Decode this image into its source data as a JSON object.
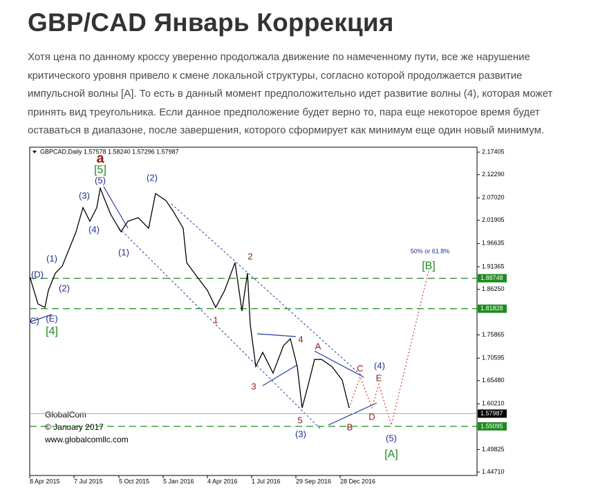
{
  "heading": "GBP/CAD Январь Коррекция",
  "paragraph": [
    "Хотя цена по данному кроссу уверенно продолжала движение по намеченному пути, все же нарушение",
    "критического уровня привело к смене локальной структуры, согласно которой продолжается развитие",
    "импульсной волны [А]. То есть в данный момент предположительно идет развитие волны (4), которая может",
    "принять вид треугольника. Если данное предположение будет верно то, пара еще некоторое время будет",
    "оставаться в диапазоне, после завершения, которого сформирует как минимум еще один новый минимум."
  ],
  "chart_data": {
    "type": "line",
    "header": "GBPCAD,Daily  1.57578 1.58240 1.57296 1.57987",
    "watermark": [
      "GlobalCom",
      "© January 2017",
      "www.globalcomllc.com"
    ],
    "x": [
      0,
      12,
      22,
      27,
      37,
      47,
      57,
      67,
      77,
      87,
      97,
      102,
      107,
      117,
      132,
      142,
      157,
      172,
      182,
      197,
      207,
      222,
      227,
      242,
      257,
      269,
      282,
      297,
      307,
      315,
      319,
      327,
      337,
      352,
      367,
      377,
      387,
      394,
      402,
      412,
      422,
      437,
      452,
      462
    ],
    "series": [
      {
        "name": "GBPCAD",
        "color": "#000000",
        "values": [
          1.8915,
          1.829,
          1.821,
          1.86,
          1.899,
          1.915,
          1.954,
          1.993,
          2.048,
          2.017,
          2.048,
          2.092,
          2.072,
          2.033,
          1.993,
          2.017,
          2.025,
          2.001,
          2.08,
          2.064,
          2.041,
          2.001,
          1.923,
          1.891,
          1.86,
          1.821,
          1.86,
          1.923,
          1.813,
          1.899,
          1.782,
          1.687,
          1.719,
          1.672,
          1.734,
          1.75,
          1.687,
          1.593,
          1.64,
          1.703,
          1.703,
          1.687,
          1.656,
          1.593
        ]
      }
    ],
    "xlim": [
      0,
      647
    ],
    "xticks": [
      {
        "value": 0,
        "label": "8 Apr 2015"
      },
      {
        "value": 64,
        "label": "7 Jul 2015"
      },
      {
        "value": 129,
        "label": "5 Oct 2015"
      },
      {
        "value": 193,
        "label": "5 Jan 2016"
      },
      {
        "value": 257,
        "label": "4 Apr 2016"
      },
      {
        "value": 321,
        "label": "1 Jul 2016"
      },
      {
        "value": 385,
        "label": "29 Sep 2016"
      },
      {
        "value": 449,
        "label": "28 Dec 2016"
      }
    ],
    "ylim": [
      1.4393,
      2.1852
    ],
    "yticks": [
      2.17405,
      {
        "value": 2.1229,
        "label": "2.12290"
      },
      {
        "value": 2.0702,
        "label": "2.07020"
      },
      2.01905,
      1.96635,
      1.91365,
      {
        "value": 1.8625,
        "label": "1.86250"
      },
      1.75865,
      1.70595,
      {
        "value": 1.6548,
        "label": "1.65480"
      },
      {
        "value": 1.6021,
        "label": "1.60210"
      },
      1.49825,
      {
        "value": 1.4471,
        "label": "1.44710"
      }
    ],
    "levels": [
      {
        "value": 1.88748,
        "color": "#1e8a1e"
      },
      {
        "value": 1.81828,
        "color": "#1e8a1e"
      },
      {
        "value": 1.57987,
        "color": "#000000"
      },
      {
        "value": 1.55095,
        "color": "#1e8a1e"
      }
    ],
    "annotations": [
      {
        "text": "a",
        "x": 102,
        "y": 2.1584,
        "color": "#8b1a1a"
      },
      {
        "text": "[5]",
        "x": 102,
        "y": 2.1332,
        "color": "#1e8a1e"
      },
      {
        "text": "(5)",
        "x": 102,
        "y": 2.1081,
        "color": "#1f2f8f"
      },
      {
        "text": "(3)",
        "x": 79,
        "y": 2.0736,
        "color": "#1f2f8f"
      },
      {
        "text": "(4)",
        "x": 93,
        "y": 1.9967,
        "color": "#1f2f8f"
      },
      {
        "text": "(1)",
        "x": 136,
        "y": 1.9449,
        "color": "#1f2f8f"
      },
      {
        "text": "(2)",
        "x": 177,
        "y": 2.1144,
        "color": "#1f2f8f"
      },
      {
        "text": "(1)",
        "x": 32,
        "y": 1.9307,
        "color": "#1f2f8f"
      },
      {
        "text": "(2)",
        "x": 50,
        "y": 1.8632,
        "color": "#1f2f8f"
      },
      {
        "text": "(D)",
        "x": 11,
        "y": 1.8946,
        "color": "#1f2f8f"
      },
      {
        "text": "C)",
        "x": 7,
        "y": 1.7894,
        "color": "#1f2f8f"
      },
      {
        "text": "(E)",
        "x": 32,
        "y": 1.7941,
        "color": "#1f2f8f"
      },
      {
        "text": "[4]",
        "x": 32,
        "y": 1.7659,
        "color": "#1e8a1e"
      },
      {
        "text": "1",
        "x": 269,
        "y": 1.791,
        "color": "#8b1a1a"
      },
      {
        "text": "2",
        "x": 319,
        "y": 1.9354,
        "color": "#8b1a1a"
      },
      {
        "text": "3",
        "x": 324,
        "y": 1.6403,
        "color": "#8b1a1a"
      },
      {
        "text": "4",
        "x": 392,
        "y": 1.7471,
        "color": "#8b1a1a"
      },
      {
        "text": "5",
        "x": 391,
        "y": 1.5634,
        "color": "#8b1a1a"
      },
      {
        "text": "(3)",
        "x": 392,
        "y": 1.532,
        "color": "#1f2f8f"
      },
      {
        "text": "A",
        "x": 417,
        "y": 1.7314,
        "color": "#8b1a1a"
      },
      {
        "text": "B",
        "x": 463,
        "y": 1.5477,
        "color": "#8b1a1a"
      },
      {
        "text": "C",
        "x": 478,
        "y": 1.6811,
        "color": "#8b1a1a"
      },
      {
        "text": "D",
        "x": 495,
        "y": 1.5712,
        "color": "#8b1a1a"
      },
      {
        "text": "E",
        "x": 505,
        "y": 1.6591,
        "color": "#8b1a1a"
      },
      {
        "text": "(4)",
        "x": 506,
        "y": 1.6874,
        "color": "#1f2f8f"
      },
      {
        "text": "(5)",
        "x": 523,
        "y": 1.5226,
        "color": "#1f2f8f"
      },
      {
        "text": "[A]",
        "x": 523,
        "y": 1.4865,
        "color": "#1e8a1e"
      },
      {
        "text": "[B]",
        "x": 577,
        "y": 1.915,
        "color": "#1e8a1e"
      },
      {
        "text": "50% or 61.8%",
        "x": 579,
        "y": 1.948,
        "color": "#1f2f8f"
      }
    ]
  }
}
